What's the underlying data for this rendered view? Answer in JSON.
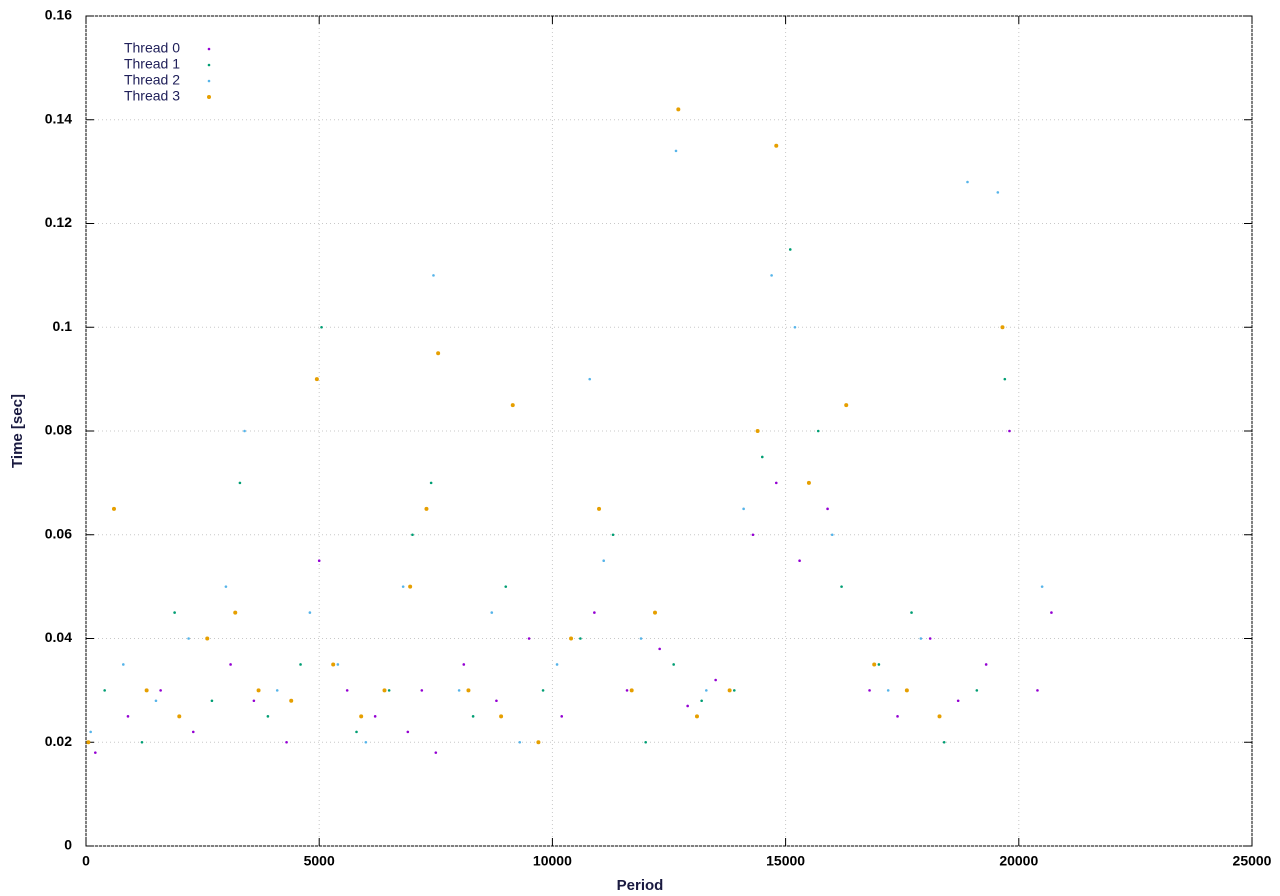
{
  "chart_data": {
    "type": "scatter",
    "x_label": "Period",
    "y_label": "Time [sec]",
    "xlim": [
      0,
      25000
    ],
    "ylim": [
      0,
      0.16
    ],
    "xticks": [
      0,
      5000,
      10000,
      15000,
      20000,
      25000
    ],
    "yticks": [
      0,
      0.02,
      0.04,
      0.06,
      0.08,
      0.1,
      0.12,
      0.14,
      0.16
    ],
    "grid": true,
    "legend": "top-left",
    "series": [
      {
        "name": "Thread 0",
        "color": "#9400d3",
        "x": [
          200,
          900,
          1600,
          2300,
          3100,
          3600,
          4300,
          5000,
          5600,
          6200,
          6900,
          7200,
          7500,
          8100,
          8800,
          9500,
          10200,
          10900,
          11600,
          12300,
          12900,
          13500,
          14300,
          14800,
          15300,
          15900,
          16800,
          17400,
          18100,
          18700,
          19300,
          19800,
          20400,
          20700
        ],
        "values": [
          0.018,
          0.025,
          0.03,
          0.022,
          0.035,
          0.028,
          0.02,
          0.055,
          0.03,
          0.025,
          0.022,
          0.03,
          0.018,
          0.035,
          0.028,
          0.04,
          0.025,
          0.045,
          0.03,
          0.038,
          0.027,
          0.032,
          0.06,
          0.07,
          0.055,
          0.065,
          0.03,
          0.025,
          0.04,
          0.028,
          0.035,
          0.08,
          0.03,
          0.045
        ]
      },
      {
        "name": "Thread 1",
        "color": "#009e73",
        "x": [
          400,
          1200,
          1900,
          2700,
          3300,
          3900,
          4600,
          5050,
          5800,
          6500,
          7000,
          7400,
          8300,
          9000,
          9800,
          10600,
          11300,
          12000,
          12600,
          13200,
          13900,
          14500,
          15100,
          15700,
          16200,
          17000,
          17700,
          18400,
          19100,
          19700
        ],
        "values": [
          0.03,
          0.02,
          0.045,
          0.028,
          0.07,
          0.025,
          0.035,
          0.1,
          0.022,
          0.03,
          0.06,
          0.07,
          0.025,
          0.05,
          0.03,
          0.04,
          0.06,
          0.02,
          0.035,
          0.028,
          0.03,
          0.075,
          0.115,
          0.08,
          0.05,
          0.035,
          0.045,
          0.02,
          0.03,
          0.09
        ]
      },
      {
        "name": "Thread 2",
        "color": "#56b4e9",
        "x": [
          100,
          800,
          1500,
          2200,
          3000,
          3400,
          4100,
          4800,
          5400,
          6000,
          6800,
          7450,
          8000,
          8700,
          9300,
          10100,
          10800,
          11100,
          11900,
          12650,
          13300,
          14100,
          14700,
          15200,
          16000,
          17200,
          17900,
          18900,
          19550,
          20500
        ],
        "values": [
          0.022,
          0.035,
          0.028,
          0.04,
          0.05,
          0.08,
          0.03,
          0.045,
          0.035,
          0.02,
          0.05,
          0.11,
          0.03,
          0.045,
          0.02,
          0.035,
          0.09,
          0.055,
          0.04,
          0.134,
          0.03,
          0.065,
          0.11,
          0.1,
          0.06,
          0.03,
          0.04,
          0.128,
          0.126,
          0.05
        ]
      },
      {
        "name": "Thread 3",
        "color": "#e69f00",
        "x": [
          50,
          600,
          1300,
          2000,
          2600,
          3200,
          3700,
          4400,
          4950,
          5300,
          5900,
          6400,
          6950,
          7300,
          7550,
          8200,
          8900,
          9150,
          9700,
          10400,
          11000,
          11700,
          12200,
          12700,
          13100,
          13800,
          14400,
          14800,
          15500,
          16300,
          16900,
          17600,
          18300,
          19650
        ],
        "values": [
          0.02,
          0.065,
          0.03,
          0.025,
          0.04,
          0.045,
          0.03,
          0.028,
          0.09,
          0.035,
          0.025,
          0.03,
          0.05,
          0.065,
          0.095,
          0.03,
          0.025,
          0.085,
          0.02,
          0.04,
          0.065,
          0.03,
          0.045,
          0.142,
          0.025,
          0.03,
          0.08,
          0.135,
          0.07,
          0.085,
          0.035,
          0.03,
          0.025,
          0.1
        ]
      }
    ]
  }
}
